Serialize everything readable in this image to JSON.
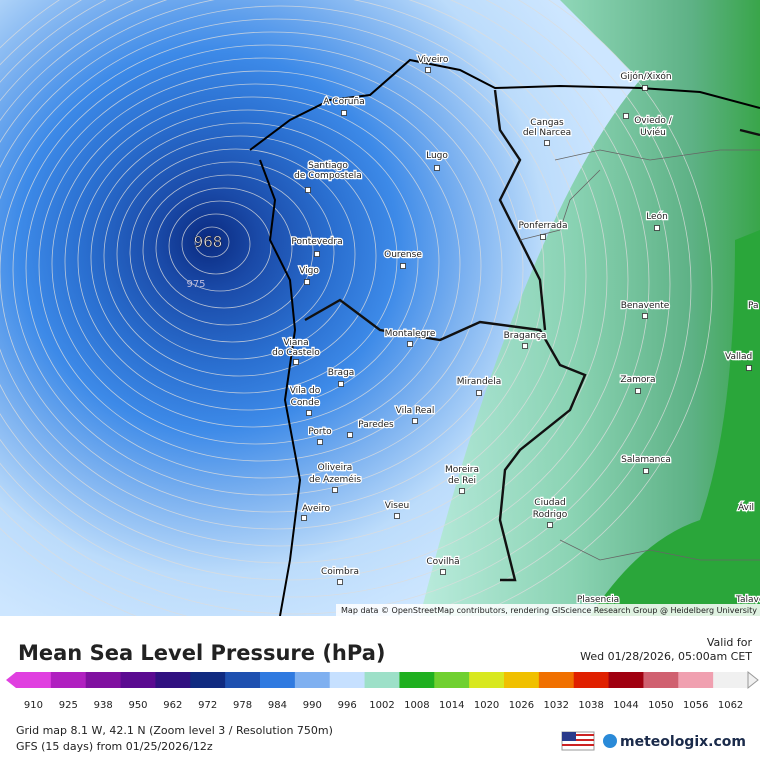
{
  "map": {
    "cities": [
      "Viveiro",
      "A Coruña",
      "Gijón/Xixón",
      "Oviedo /",
      "Uviéu",
      "Cangas",
      "del Narcea",
      "Lugo",
      "Santiago",
      "de Compostela",
      "León",
      "Ponferrada",
      "Pontevedra",
      "Ourense",
      "Vigo",
      "Benavente",
      "Montalegre",
      "Bragança",
      "Viana",
      "do Castelo",
      "Vallad",
      "Pa",
      "Braga",
      "Mirandela",
      "Zamora",
      "Vila do",
      "Conde",
      "Vila Real",
      "Paredes",
      "Porto",
      "Salamanca",
      "Oliveira",
      "de Azeméis",
      "Moreira",
      "de Rei",
      "Ciudad",
      "Rodrigo",
      "Aveiro",
      "Viseu",
      "Ávil",
      "Coimbra",
      "Covilhã",
      "Plasencia",
      "Talavera"
    ],
    "isobar_labels": [
      "968",
      "975"
    ],
    "attribution": "Map data © OpenStreetMap contributors, rendering GIScience Research Group @ Heidelberg University"
  },
  "header": {
    "title": "Mean Sea Level Pressure (hPa)",
    "valid_label": "Valid for",
    "valid_time": "Wed 01/28/2026, 05:00am CET"
  },
  "colorbar": {
    "labels": [
      910,
      925,
      938,
      950,
      962,
      972,
      978,
      984,
      990,
      996,
      1002,
      1008,
      1014,
      1020,
      1026,
      1032,
      1038,
      1044,
      1050,
      1056,
      1062
    ],
    "colors": [
      "#e040e0",
      "#b020c0",
      "#8010a0",
      "#5a0a90",
      "#301080",
      "#102a80",
      "#1e50b0",
      "#2f7ae0",
      "#7fb0f0",
      "#c6e0ff",
      "#9de0c8",
      "#20b020",
      "#70d030",
      "#d8e820",
      "#f0c000",
      "#f07000",
      "#e02000",
      "#a00010",
      "#d06070",
      "#f0a0b0",
      "#f0f0f0"
    ]
  },
  "footer": {
    "grid": "Grid map 8.1 W, 42.1 N (Zoom level 3 / Resolution 750m)",
    "model": "GFS (15 days) from 01/25/2026/12z",
    "brand": "meteologix.com"
  }
}
